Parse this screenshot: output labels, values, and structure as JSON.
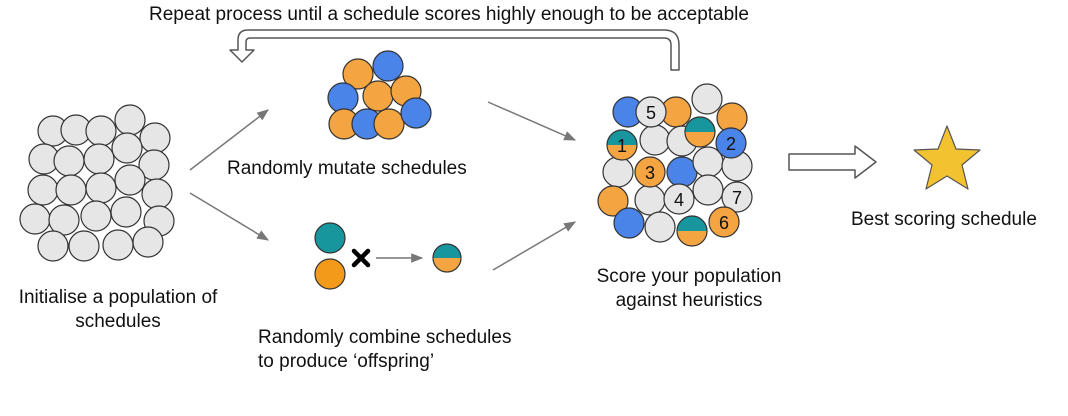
{
  "title": "Repeat process until a schedule scores highly enough to be acceptable",
  "steps": {
    "initialise": {
      "line1": "Initialise a population of",
      "line2": "schedules"
    },
    "mutate": {
      "label": "Randomly mutate schedules"
    },
    "combine": {
      "line1": "Randomly combine schedules",
      "line2": "to produce ‘offspring’"
    },
    "score": {
      "line1": "Score your population",
      "line2": "against heuristics"
    },
    "best": {
      "label": "Best scoring schedule"
    }
  },
  "rank_numbers": [
    "1",
    "2",
    "3",
    "4",
    "5",
    "6",
    "7"
  ],
  "colors": {
    "grey_fill": "#e6e6e6",
    "orange": "#f4a440",
    "blue": "#4a84e8",
    "teal": "#17969e",
    "outline": "#333333",
    "arrow": "#777777",
    "star": "#f2c230"
  },
  "icons": {
    "cross": "cross-icon",
    "star": "star-icon",
    "loop_arrow": "loop-arrow-icon"
  }
}
